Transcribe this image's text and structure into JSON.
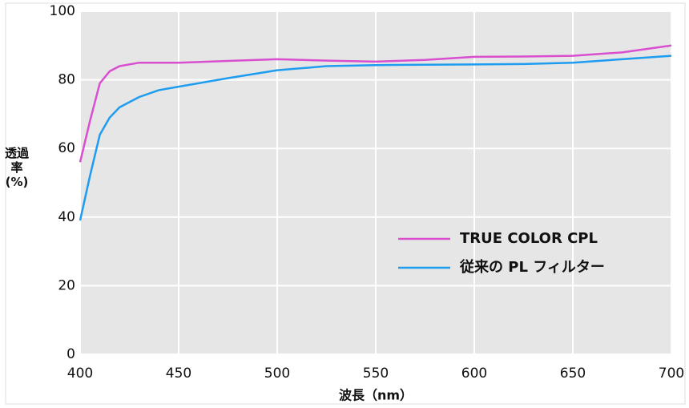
{
  "chart_data": {
    "type": "line",
    "xlabel": "波長（nm）",
    "ylabel": "透過率(%)",
    "x": [
      400,
      405,
      410,
      415,
      420,
      430,
      440,
      450,
      475,
      500,
      525,
      550,
      575,
      600,
      625,
      650,
      675,
      700
    ],
    "series": [
      {
        "name": "TRUE COLOR CPL",
        "color": "#d94fd0",
        "values": [
          56,
          68,
          79,
          82.5,
          84,
          85,
          85,
          85,
          85.5,
          86,
          85.6,
          85.3,
          85.8,
          86.7,
          86.8,
          87,
          88,
          90
        ]
      },
      {
        "name": "従来の PL フィルター",
        "color": "#1e9cf0",
        "values": [
          39,
          52,
          64,
          69,
          72,
          75,
          77,
          78,
          80.5,
          82.8,
          84,
          84.3,
          84.4,
          84.5,
          84.6,
          85,
          86,
          87
        ]
      }
    ],
    "xlim": [
      400,
      700
    ],
    "xticks": [
      400,
      450,
      500,
      550,
      600,
      650,
      700
    ],
    "ylim": [
      0,
      100
    ],
    "yticks": [
      0,
      20,
      40,
      60,
      80,
      100
    ],
    "grid": true
  }
}
